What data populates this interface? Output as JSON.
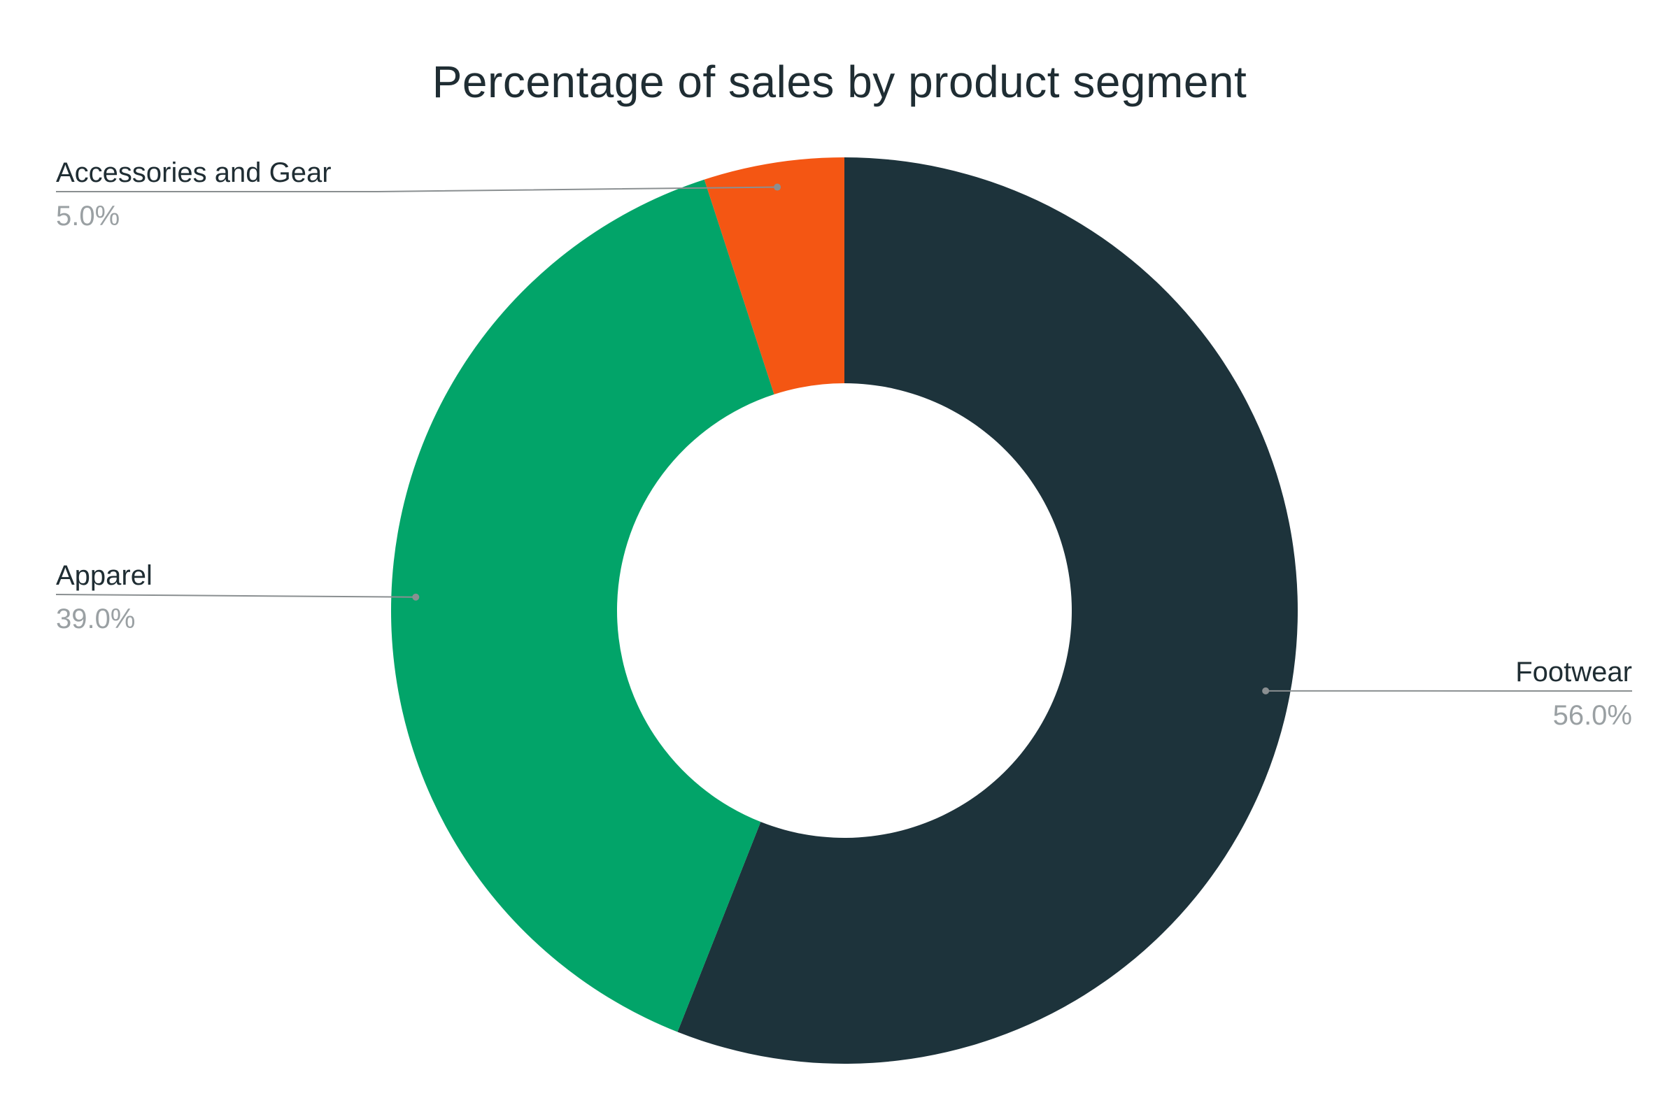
{
  "chart_data": {
    "type": "pie",
    "donut": true,
    "title": "Percentage of sales by product segment",
    "slices": [
      {
        "label": "Footwear",
        "value": 56.0,
        "display": "56.0%",
        "color": "#1d333b"
      },
      {
        "label": "Apparel",
        "value": 39.0,
        "display": "39.0%",
        "color": "#02a469"
      },
      {
        "label": "Accessories and Gear",
        "value": 5.0,
        "display": "5.0%",
        "color": "#f45613"
      }
    ],
    "start_angle_deg": 0,
    "direction": "clockwise",
    "legend": "none",
    "labels_position": "outside-with-leader-lines"
  }
}
